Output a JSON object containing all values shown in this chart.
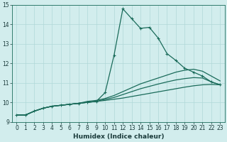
{
  "title": "",
  "xlabel": "Humidex (Indice chaleur)",
  "ylabel": "",
  "bg_color": "#d2eded",
  "grid_color": "#b0d8d8",
  "xlim": [
    -0.5,
    23.5
  ],
  "ylim": [
    9,
    15
  ],
  "yticks": [
    9,
    10,
    11,
    12,
    13,
    14,
    15
  ],
  "xticks": [
    0,
    1,
    2,
    3,
    4,
    5,
    6,
    7,
    8,
    9,
    10,
    11,
    12,
    13,
    14,
    15,
    16,
    17,
    18,
    19,
    20,
    21,
    22,
    23
  ],
  "series": [
    {
      "x": [
        0,
        1,
        2,
        3,
        4,
        5,
        6,
        7,
        8,
        9,
        10,
        11,
        12,
        13,
        14,
        15,
        16,
        17,
        18,
        19,
        20,
        21,
        22,
        23
      ],
      "y": [
        9.35,
        9.35,
        9.55,
        9.7,
        9.8,
        9.85,
        9.9,
        9.95,
        10.0,
        10.05,
        10.5,
        12.4,
        14.8,
        14.3,
        13.8,
        13.85,
        13.3,
        12.5,
        12.15,
        11.75,
        11.55,
        11.35,
        11.05,
        10.9
      ],
      "color": "#1a6b5a",
      "lw": 0.9,
      "marker": "+"
    },
    {
      "x": [
        0,
        1,
        2,
        3,
        4,
        5,
        6,
        7,
        8,
        9,
        10,
        11,
        12,
        13,
        14,
        15,
        16,
        17,
        18,
        19,
        20,
        21,
        22,
        23
      ],
      "y": [
        9.35,
        9.35,
        9.55,
        9.7,
        9.8,
        9.85,
        9.9,
        9.95,
        10.05,
        10.1,
        10.2,
        10.35,
        10.55,
        10.75,
        10.95,
        11.1,
        11.25,
        11.4,
        11.55,
        11.65,
        11.7,
        11.6,
        11.35,
        11.1
      ],
      "color": "#1a6b5a",
      "lw": 0.9,
      "marker": null
    },
    {
      "x": [
        0,
        1,
        2,
        3,
        4,
        5,
        6,
        7,
        8,
        9,
        10,
        11,
        12,
        13,
        14,
        15,
        16,
        17,
        18,
        19,
        20,
        21,
        22,
        23
      ],
      "y": [
        9.35,
        9.35,
        9.55,
        9.7,
        9.8,
        9.85,
        9.9,
        9.95,
        10.0,
        10.05,
        10.15,
        10.25,
        10.4,
        10.55,
        10.7,
        10.82,
        10.94,
        11.05,
        11.15,
        11.22,
        11.27,
        11.25,
        11.05,
        10.9
      ],
      "color": "#1a6b5a",
      "lw": 0.9,
      "marker": null
    },
    {
      "x": [
        0,
        1,
        2,
        3,
        4,
        5,
        6,
        7,
        8,
        9,
        10,
        11,
        12,
        13,
        14,
        15,
        16,
        17,
        18,
        19,
        20,
        21,
        22,
        23
      ],
      "y": [
        9.35,
        9.35,
        9.55,
        9.7,
        9.8,
        9.85,
        9.9,
        9.95,
        10.0,
        10.05,
        10.1,
        10.16,
        10.22,
        10.3,
        10.38,
        10.46,
        10.54,
        10.62,
        10.7,
        10.78,
        10.85,
        10.9,
        10.92,
        10.9
      ],
      "color": "#1a6b5a",
      "lw": 0.9,
      "marker": null
    }
  ]
}
